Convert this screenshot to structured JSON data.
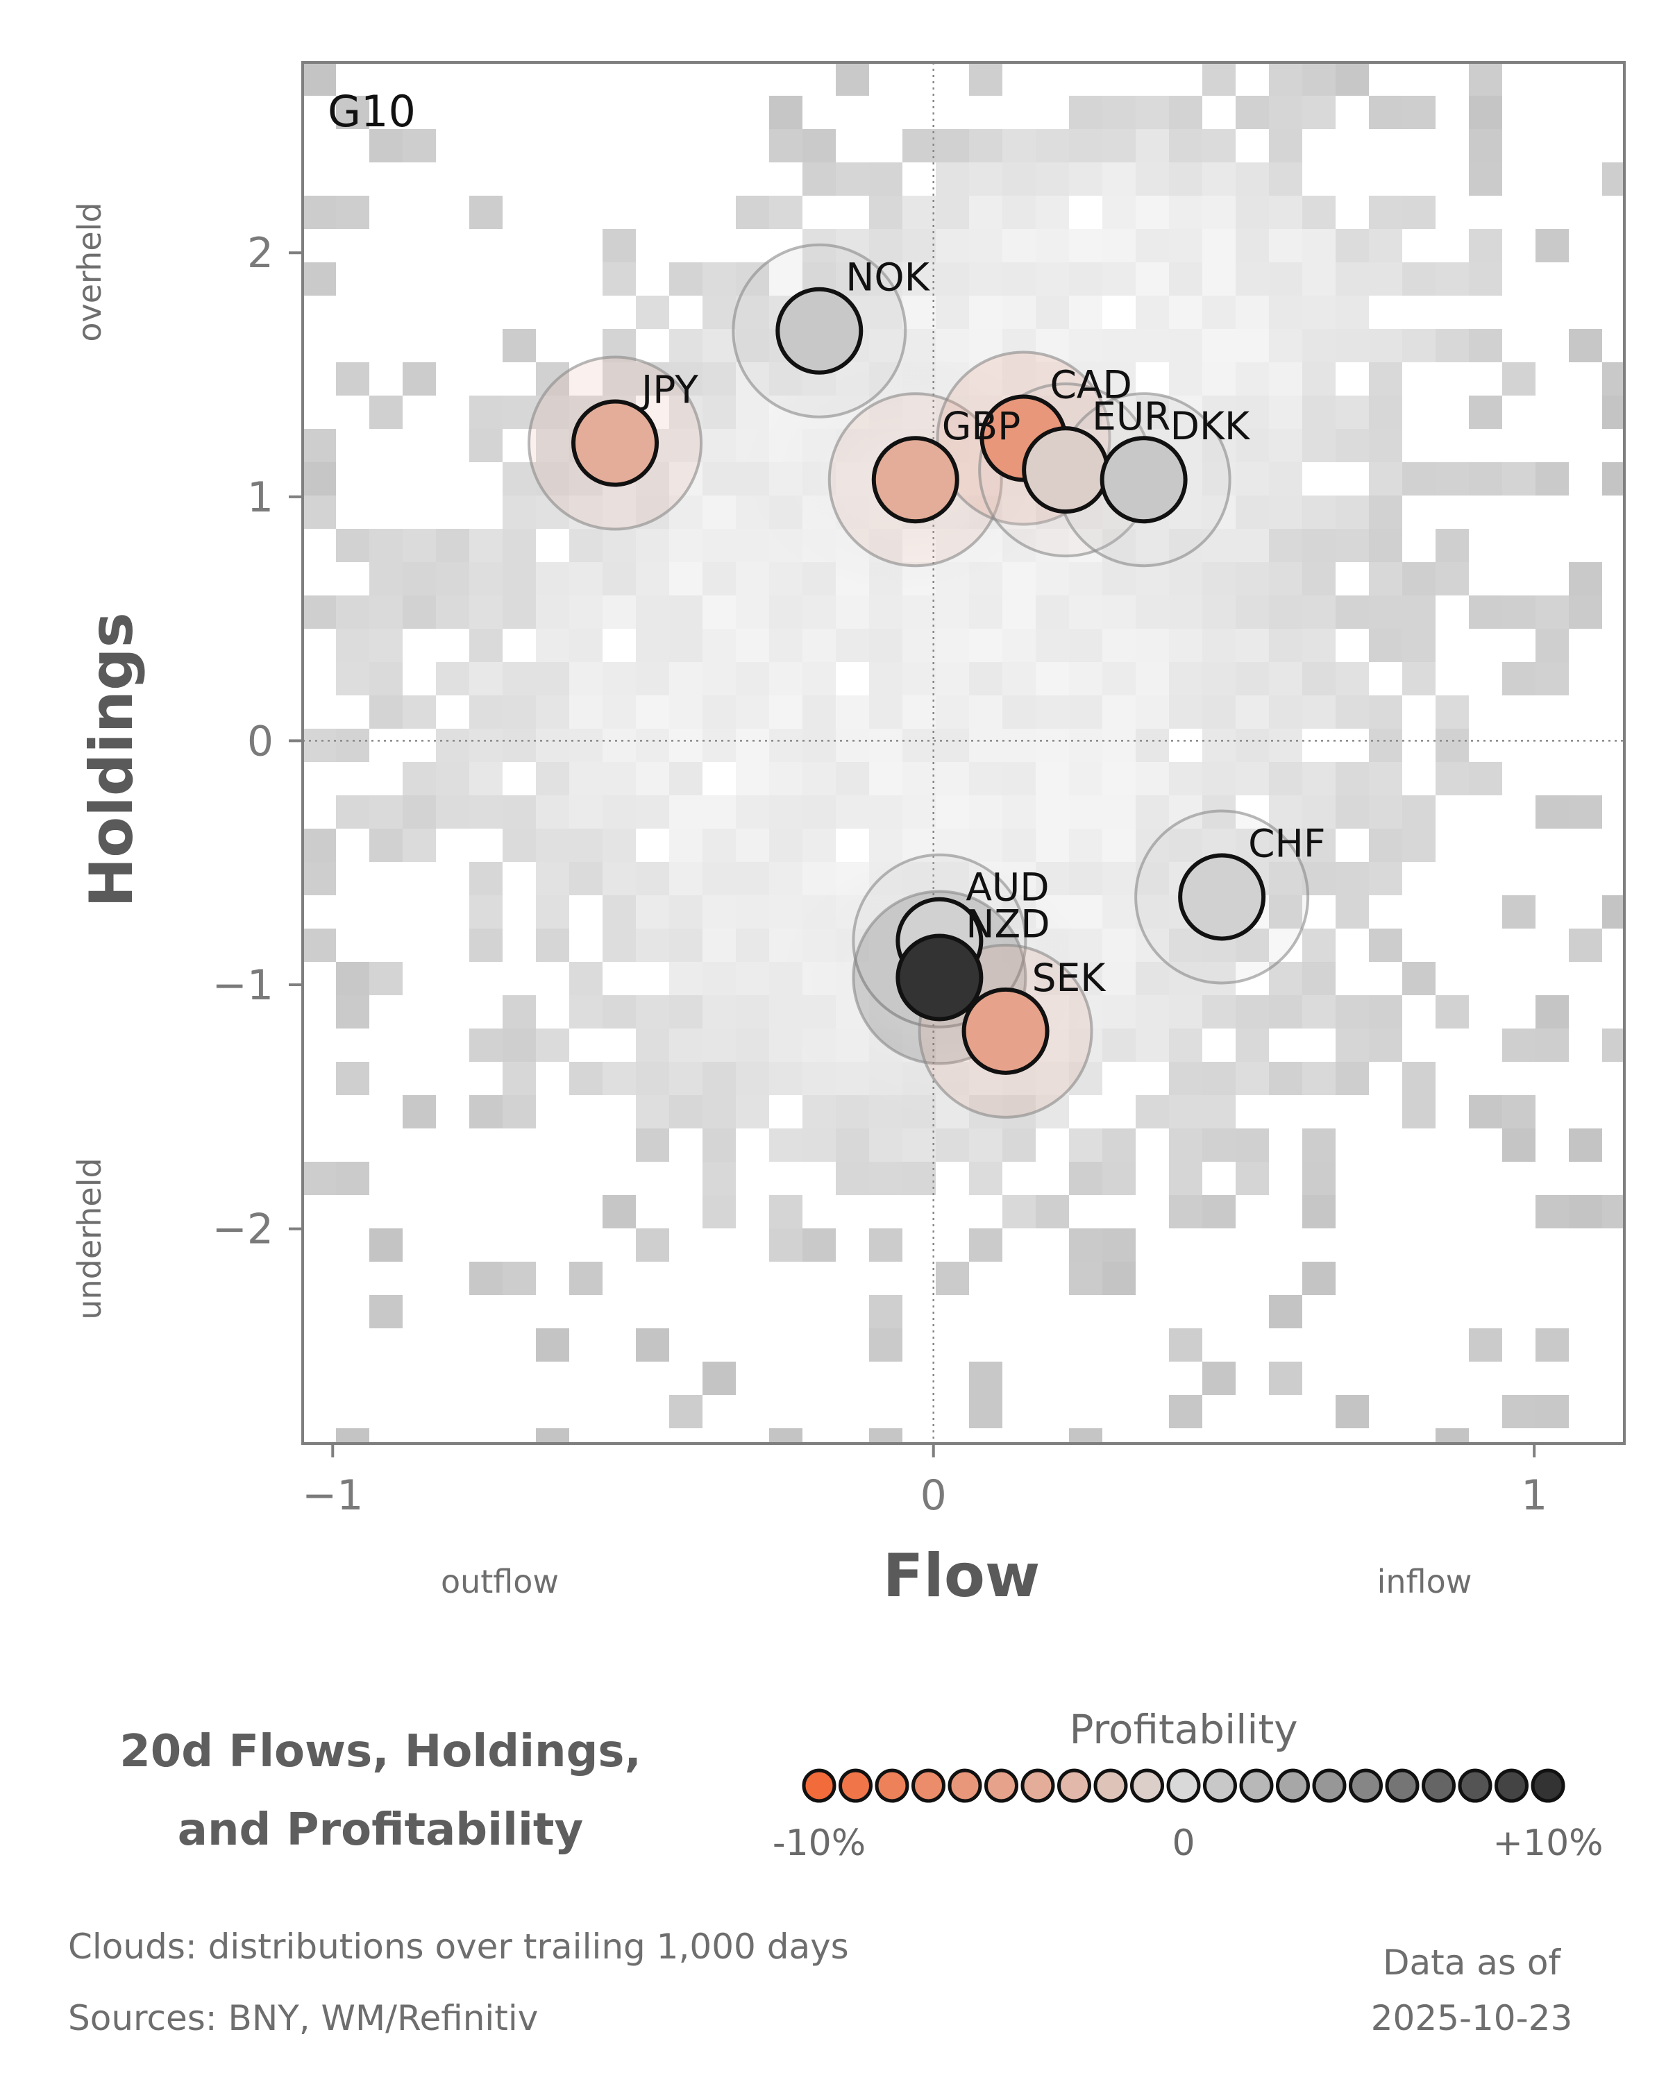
{
  "chart_data": {
    "type": "scatter",
    "group_label": "G10",
    "xlabel": "Flow",
    "ylabel": "Holdings",
    "xlim": [
      -1.05,
      1.15
    ],
    "ylim": [
      -2.88,
      2.78
    ],
    "x_ticks": [
      {
        "value": -1,
        "label": "−1"
      },
      {
        "value": 0,
        "label": "0"
      },
      {
        "value": 1,
        "label": "1"
      }
    ],
    "y_ticks": [
      {
        "value": 2,
        "label": "2"
      },
      {
        "value": 1,
        "label": "1"
      },
      {
        "value": 0,
        "label": "0"
      },
      {
        "value": -1,
        "label": "−1"
      },
      {
        "value": -2,
        "label": "−2"
      }
    ],
    "x_side_labels": {
      "low": "outflow",
      "high": "inflow"
    },
    "y_side_labels": {
      "high": "overheld",
      "low": "underheld"
    },
    "points": [
      {
        "currency": "NOK",
        "flow": -0.19,
        "holdings": 1.68,
        "profitability": 1
      },
      {
        "currency": "JPY",
        "flow": -0.53,
        "holdings": 1.22,
        "profitability": -4
      },
      {
        "currency": "GBP",
        "flow": -0.03,
        "holdings": 1.07,
        "profitability": -4
      },
      {
        "currency": "CAD",
        "flow": 0.15,
        "holdings": 1.24,
        "profitability": -6
      },
      {
        "currency": "EUR",
        "flow": 0.22,
        "holdings": 1.11,
        "profitability": -1
      },
      {
        "currency": "DKK",
        "flow": 0.35,
        "holdings": 1.07,
        "profitability": 1
      },
      {
        "currency": "CHF",
        "flow": 0.48,
        "holdings": -0.64,
        "profitability": 0.5
      },
      {
        "currency": "AUD",
        "flow": 0.01,
        "holdings": -0.82,
        "profitability": 0.5
      },
      {
        "currency": "NZD",
        "flow": 0.01,
        "holdings": -0.97,
        "profitability": 10
      },
      {
        "currency": "SEK",
        "flow": 0.12,
        "holdings": -1.19,
        "profitability": -5
      }
    ],
    "colorbar": {
      "title": "Profitability",
      "min_label": "-10%",
      "mid_label": "0",
      "max_label": "+10%",
      "neg_color": "#f26b3a",
      "mid_color": "#d9d9d9",
      "pos_color": "#333333",
      "steps": 21
    },
    "title_lines": [
      "20d Flows, Holdings,",
      "and Profitability"
    ],
    "footnotes": [
      "Clouds:  distributions over trailing 1,000 days",
      "Sources:  BNY, WM/Refinitiv"
    ],
    "as_of": [
      "Data as of",
      "2025-10-23"
    ]
  }
}
